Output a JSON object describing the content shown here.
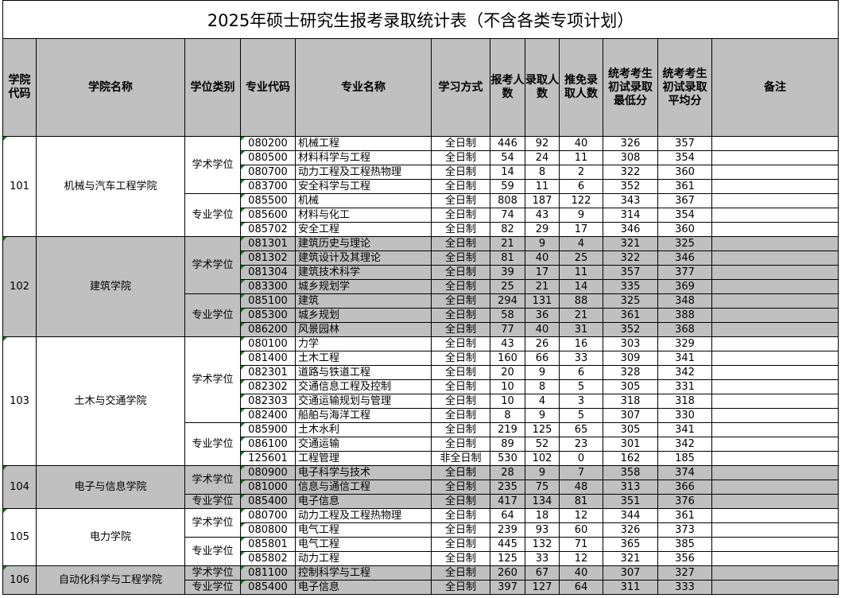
{
  "title": "2025年硕士研究生报考录取统计表（不含各类专项计划）",
  "headers": [
    "学院代码",
    "学院名称",
    "学位类别",
    "专业代码",
    "专业名称",
    "学习方式",
    "报考人数",
    "录取人数",
    "推免录取人数",
    "统考考生初试录取最低分",
    "统考考生初试录取平均分",
    "备注"
  ],
  "colleges": [
    {
      "code": "101",
      "name": "机械与汽车工程学院",
      "groups": [
        {
          "type": "学术学位",
          "rows": [
            [
              "080200",
              "机械工程",
              "全日制",
              "446",
              "92",
              "40",
              "326",
              "357"
            ],
            [
              "080500",
              "材料科学与工程",
              "全日制",
              "54",
              "24",
              "11",
              "308",
              "354"
            ],
            [
              "080700",
              "动力工程及工程热物理",
              "全日制",
              "14",
              "8",
              "2",
              "322",
              "360"
            ],
            [
              "083700",
              "安全科学与工程",
              "全日制",
              "59",
              "11",
              "6",
              "352",
              "361"
            ]
          ]
        },
        {
          "type": "专业学位",
          "rows": [
            [
              "085500",
              "机械",
              "全日制",
              "808",
              "187",
              "122",
              "343",
              "367"
            ],
            [
              "085600",
              "材料与化工",
              "全日制",
              "74",
              "43",
              "9",
              "314",
              "354"
            ],
            [
              "085702",
              "安全工程",
              "全日制",
              "82",
              "29",
              "17",
              "346",
              "360"
            ]
          ]
        }
      ]
    },
    {
      "code": "102",
      "name": "建筑学院",
      "shaded": true,
      "groups": [
        {
          "type": "学术学位",
          "rows": [
            [
              "081301",
              "建筑历史与理论",
              "全日制",
              "21",
              "9",
              "4",
              "321",
              "325"
            ],
            [
              "081302",
              "建筑设计及其理论",
              "全日制",
              "81",
              "40",
              "25",
              "322",
              "346"
            ],
            [
              "081304",
              "建筑技术科学",
              "全日制",
              "39",
              "17",
              "11",
              "357",
              "377"
            ],
            [
              "083300",
              "城乡规划学",
              "全日制",
              "25",
              "21",
              "14",
              "335",
              "369"
            ]
          ]
        },
        {
          "type": "专业学位",
          "rows": [
            [
              "085100",
              "建筑",
              "全日制",
              "294",
              "131",
              "88",
              "325",
              "348"
            ],
            [
              "085300",
              "城乡规划",
              "全日制",
              "58",
              "36",
              "21",
              "361",
              "388"
            ],
            [
              "086200",
              "风景园林",
              "全日制",
              "77",
              "40",
              "31",
              "352",
              "368"
            ]
          ]
        }
      ]
    },
    {
      "code": "103",
      "name": "土木与交通学院",
      "groups": [
        {
          "type": "学术学位",
          "rows": [
            [
              "080100",
              "力学",
              "全日制",
              "43",
              "26",
              "16",
              "303",
              "329"
            ],
            [
              "081400",
              "土木工程",
              "全日制",
              "160",
              "66",
              "33",
              "309",
              "341"
            ],
            [
              "082301",
              "道路与铁道工程",
              "全日制",
              "20",
              "9",
              "6",
              "328",
              "342"
            ],
            [
              "082302",
              "交通信息工程及控制",
              "全日制",
              "10",
              "8",
              "5",
              "305",
              "331"
            ],
            [
              "082303",
              "交通运输规划与管理",
              "全日制",
              "10",
              "4",
              "3",
              "318",
              "318"
            ],
            [
              "082400",
              "船舶与海洋工程",
              "全日制",
              "8",
              "9",
              "5",
              "307",
              "330"
            ]
          ]
        },
        {
          "type": "专业学位",
          "rows": [
            [
              "085900",
              "土木水利",
              "全日制",
              "219",
              "125",
              "65",
              "305",
              "341"
            ],
            [
              "086100",
              "交通运输",
              "全日制",
              "89",
              "52",
              "23",
              "301",
              "342"
            ],
            [
              "125601",
              "工程管理",
              "非全日制",
              "530",
              "102",
              "0",
              "162",
              "185"
            ]
          ]
        }
      ]
    },
    {
      "code": "104",
      "name": "电子与信息学院",
      "shaded": true,
      "groups": [
        {
          "type": "学术学位",
          "rows": [
            [
              "080900",
              "电子科学与技术",
              "全日制",
              "28",
              "9",
              "7",
              "358",
              "374"
            ],
            [
              "081000",
              "信息与通信工程",
              "全日制",
              "235",
              "75",
              "48",
              "313",
              "366"
            ]
          ]
        },
        {
          "type": "专业学位",
          "rows": [
            [
              "085400",
              "电子信息",
              "全日制",
              "417",
              "134",
              "81",
              "351",
              "376"
            ]
          ]
        }
      ]
    },
    {
      "code": "105",
      "name": "电力学院",
      "groups": [
        {
          "type": "学术学位",
          "rows": [
            [
              "080700",
              "动力工程及工程热物理",
              "全日制",
              "64",
              "18",
              "12",
              "344",
              "361"
            ],
            [
              "080800",
              "电气工程",
              "全日制",
              "239",
              "93",
              "60",
              "326",
              "373"
            ]
          ]
        },
        {
          "type": "专业学位",
          "rows": [
            [
              "085801",
              "电气工程",
              "全日制",
              "445",
              "132",
              "71",
              "365",
              "385"
            ],
            [
              "085802",
              "动力工程",
              "全日制",
              "125",
              "33",
              "12",
              "321",
              "356"
            ]
          ]
        }
      ]
    },
    {
      "code": "106",
      "name": "自动化科学与工程学院",
      "shaded": true,
      "groups": [
        {
          "type": "学术学位",
          "rows": [
            [
              "081100",
              "控制科学与工程",
              "全日制",
              "260",
              "67",
              "40",
              "307",
              "327"
            ]
          ]
        },
        {
          "type": "专业学位",
          "rows": [
            [
              "085400",
              "电子信息",
              "全日制",
              "397",
              "127",
              "64",
              "311",
              "333"
            ]
          ]
        }
      ]
    }
  ]
}
